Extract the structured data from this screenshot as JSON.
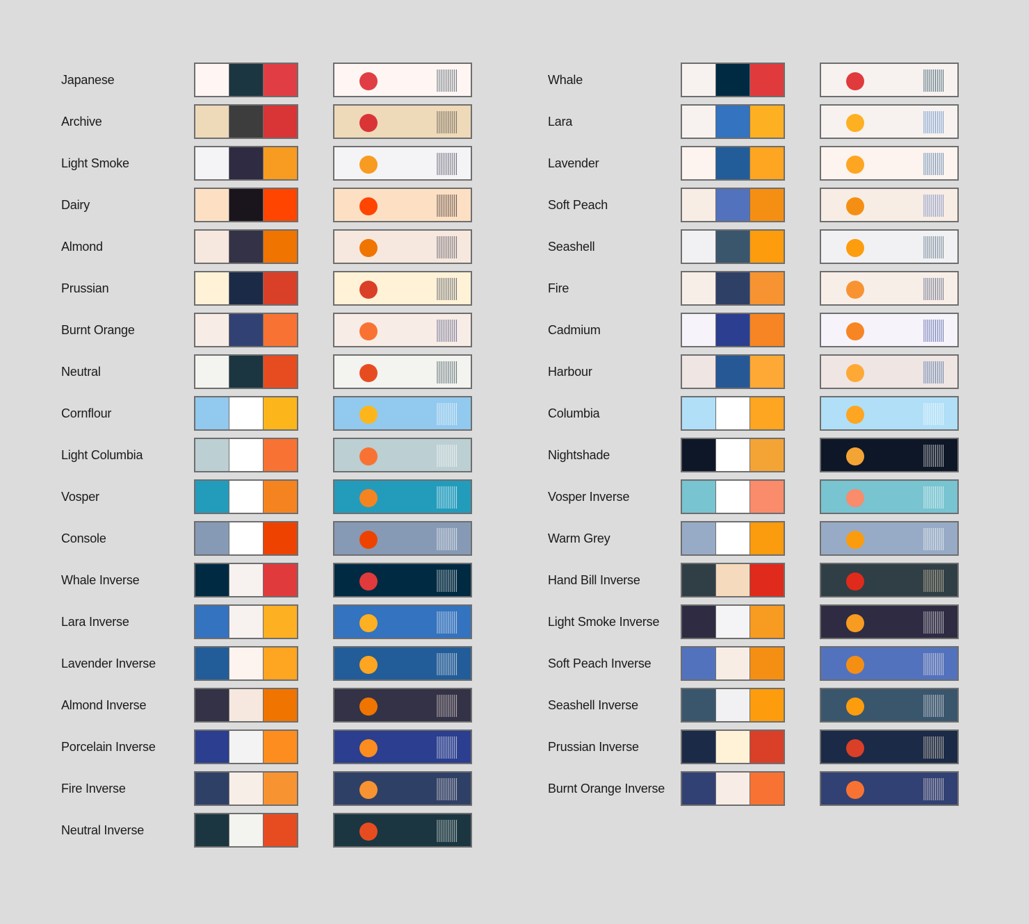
{
  "page": {
    "background": "#dcdcdc"
  },
  "palettes": [
    {
      "name": "Japanese",
      "bg": "#fff6f4",
      "fg": "#1b3640",
      "accent": "#e03e44"
    },
    {
      "name": "Archive",
      "bg": "#eed9b9",
      "fg": "#3d3d3d",
      "accent": "#d93436"
    },
    {
      "name": "Light Smoke",
      "bg": "#f4f4f6",
      "fg": "#2f2b42",
      "accent": "#f89b21"
    },
    {
      "name": "Dairy",
      "bg": "#fde0c4",
      "fg": "#1a141c",
      "accent": "#ff4500"
    },
    {
      "name": "Almond",
      "bg": "#f6e8de",
      "fg": "#343246",
      "accent": "#f07400"
    },
    {
      "name": "Prussian",
      "bg": "#fff2d7",
      "fg": "#1b2a46",
      "accent": "#da3f28"
    },
    {
      "name": "Burnt Orange",
      "bg": "#f8ece6",
      "fg": "#324173",
      "accent": "#f87333"
    },
    {
      "name": "Neutral",
      "bg": "#f3f3ef",
      "fg": "#1b3640",
      "accent": "#e74c21"
    },
    {
      "name": "Cornflour",
      "bg": "#92c9ee",
      "fg": "#ffffff",
      "accent": "#fcb61c"
    },
    {
      "name": "Light Columbia",
      "bg": "#bccfd2",
      "fg": "#ffffff",
      "accent": "#f87333"
    },
    {
      "name": "Vosper",
      "bg": "#239cbc",
      "fg": "#ffffff",
      "accent": "#f58420"
    },
    {
      "name": "Console",
      "bg": "#879ab5",
      "fg": "#ffffff",
      "accent": "#ee4300"
    },
    {
      "name": "Whale Inverse",
      "bg": "#002a42",
      "fg": "#f7f2ef",
      "accent": "#e03a3c"
    },
    {
      "name": "Lara Inverse",
      "bg": "#3373bf",
      "fg": "#f7f2ef",
      "accent": "#feb023"
    },
    {
      "name": "Lavender Inverse",
      "bg": "#225d99",
      "fg": "#fdf3ef",
      "accent": "#fea521"
    },
    {
      "name": "Almond Inverse",
      "bg": "#343246",
      "fg": "#f6e8de",
      "accent": "#f07400"
    },
    {
      "name": "Porcelain Inverse",
      "bg": "#2b3e8f",
      "fg": "#f3f3f3",
      "accent": "#fd8d1f"
    },
    {
      "name": "Fire Inverse",
      "bg": "#2f4067",
      "fg": "#f8eee8",
      "accent": "#f89332"
    },
    {
      "name": "Neutral Inverse",
      "bg": "#1b3640",
      "fg": "#f3f3ef",
      "accent": "#e74c21"
    },
    {
      "name": "Whale",
      "bg": "#f7f2ef",
      "fg": "#002a42",
      "accent": "#e03a3c"
    },
    {
      "name": "Lara",
      "bg": "#f7f2ef",
      "fg": "#3373bf",
      "accent": "#feb023"
    },
    {
      "name": "Lavender",
      "bg": "#fdf3ef",
      "fg": "#225d99",
      "accent": "#fea521"
    },
    {
      "name": "Soft Peach",
      "bg": "#f7ede4",
      "fg": "#5372be",
      "accent": "#f58f14"
    },
    {
      "name": "Seashell",
      "bg": "#f1f1f3",
      "fg": "#3a566d",
      "accent": "#fd9d0e"
    },
    {
      "name": "Fire",
      "bg": "#f8eee8",
      "fg": "#2f4067",
      "accent": "#f89332"
    },
    {
      "name": "Cadmium",
      "bg": "#f6f3fb",
      "fg": "#2b3e8f",
      "accent": "#f78523"
    },
    {
      "name": "Harbour",
      "bg": "#efe5e3",
      "fg": "#275896",
      "accent": "#fea935"
    },
    {
      "name": "Columbia",
      "bg": "#b0dff7",
      "fg": "#ffffff",
      "accent": "#fea521"
    },
    {
      "name": "Nightshade",
      "bg": "#0e1727",
      "fg": "#ffffff",
      "accent": "#f4a435"
    },
    {
      "name": "Vosper Inverse",
      "bg": "#78c4d0",
      "fg": "#ffffff",
      "accent": "#fa8b6b"
    },
    {
      "name": "Warm Grey",
      "bg": "#98abc6",
      "fg": "#ffffff",
      "accent": "#fb9b0e"
    },
    {
      "name": "Hand Bill Inverse",
      "bg": "#303f45",
      "fg": "#f5dabe",
      "accent": "#e02a1b"
    },
    {
      "name": "Light Smoke Inverse",
      "bg": "#2f2b42",
      "fg": "#f4f4f6",
      "accent": "#f89b21"
    },
    {
      "name": "Soft Peach Inverse",
      "bg": "#5372be",
      "fg": "#f7ede4",
      "accent": "#f58f14"
    },
    {
      "name": "Seashell Inverse",
      "bg": "#3a566d",
      "fg": "#f1f1f3",
      "accent": "#fd9d0e"
    },
    {
      "name": "Prussian Inverse",
      "bg": "#1b2a46",
      "fg": "#fff2d7",
      "accent": "#da3f28"
    },
    {
      "name": "Burnt Orange Inverse",
      "bg": "#324173",
      "fg": "#f8ece6",
      "accent": "#f87333"
    }
  ]
}
